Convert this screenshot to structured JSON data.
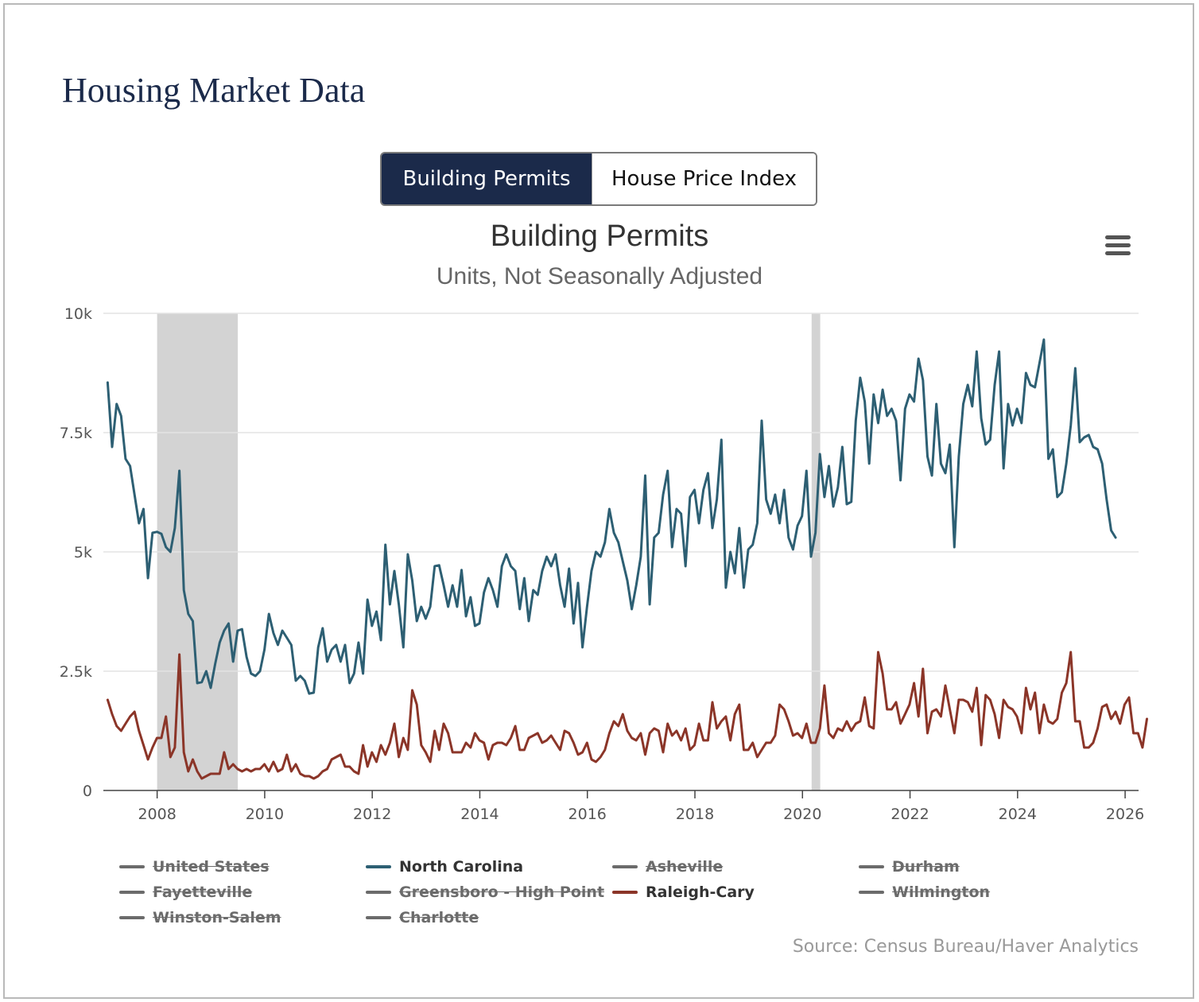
{
  "page": {
    "title": "Housing Market Data"
  },
  "toggle": {
    "active_label": "Building Permits",
    "inactive_label": "House Price Index"
  },
  "source": "Source: Census Bureau/Haver Analytics",
  "chart_data": {
    "type": "line",
    "title": "Building Permits",
    "subtitle": "Units, Not Seasonally Adjusted",
    "ylim": [
      0,
      10000
    ],
    "y_ticks": [
      0,
      2500,
      5000,
      7500,
      10000
    ],
    "y_tick_labels": [
      "0",
      "2.5k",
      "5k",
      "7.5k",
      "10k"
    ],
    "xlim": [
      2007.0,
      2026.25
    ],
    "x_ticks": [
      2008,
      2010,
      2012,
      2014,
      2016,
      2018,
      2020,
      2022,
      2024,
      2026
    ],
    "x_tick_labels": [
      "2008",
      "2010",
      "2012",
      "2014",
      "2016",
      "2018",
      "2020",
      "2022",
      "2024",
      "2026"
    ],
    "x_start": 2007.08,
    "x_step": 0.0833,
    "recession_bands": [
      [
        2008.0,
        2009.5
      ],
      [
        2020.17,
        2020.33
      ]
    ],
    "grid": true,
    "series": [
      {
        "name": "North Carolina",
        "color": "#2d5f73",
        "values": [
          8550,
          7200,
          8100,
          7850,
          6950,
          6800,
          6200,
          5600,
          5900,
          4450,
          5400,
          5420,
          5380,
          5100,
          5000,
          5500,
          6700,
          4200,
          3700,
          3550,
          2250,
          2270,
          2500,
          2150,
          2650,
          3100,
          3350,
          3500,
          2700,
          3350,
          3380,
          2800,
          2450,
          2400,
          2500,
          2950,
          3700,
          3300,
          3050,
          3350,
          3200,
          3050,
          2300,
          2400,
          2300,
          2030,
          2050,
          3000,
          3400,
          2700,
          2950,
          3050,
          2700,
          3050,
          2250,
          2450,
          3100,
          2450,
          4000,
          3450,
          3750,
          3150,
          5150,
          3900,
          4600,
          3900,
          3000,
          4950,
          4400,
          3550,
          3850,
          3600,
          3850,
          4700,
          4720,
          4300,
          3850,
          4300,
          3850,
          4620,
          3650,
          4050,
          3450,
          3500,
          4150,
          4450,
          4200,
          3850,
          4700,
          4950,
          4700,
          4600,
          3800,
          4450,
          3550,
          4200,
          4100,
          4600,
          4900,
          4700,
          4950,
          4300,
          3850,
          4650,
          3500,
          4350,
          3000,
          3850,
          4600,
          5000,
          4900,
          5200,
          5900,
          5400,
          5200,
          4800,
          4400,
          3800,
          4300,
          4900,
          6600,
          3900,
          5300,
          5400,
          6200,
          6700,
          5100,
          5900,
          5800,
          4700,
          6150,
          6300,
          5600,
          6300,
          6650,
          5500,
          6100,
          7350,
          4250,
          5000,
          4550,
          5500,
          4250,
          5050,
          5150,
          5600,
          7750,
          6100,
          5800,
          6200,
          5600,
          6300,
          5300,
          5050,
          5550,
          5750,
          6700,
          4900,
          5400,
          7050,
          6150,
          6800,
          5950,
          6350,
          7200,
          6000,
          6050,
          7750,
          8650,
          8150,
          6850,
          8300,
          7700,
          8400,
          7850,
          8000,
          7750,
          6500,
          8000,
          8300,
          8150,
          9050,
          8600,
          7000,
          6600,
          8100,
          6850,
          6650,
          7250,
          5100,
          7000,
          8100,
          8500,
          8050,
          9200,
          7800,
          7250,
          7350,
          8500,
          9200,
          6750,
          8100,
          7650,
          8000,
          7700,
          8750,
          8500,
          8450,
          8950,
          9450,
          6950,
          7150,
          6150,
          6250,
          6850,
          7650,
          8850,
          7300,
          7400,
          7450,
          7200,
          7150,
          6850,
          6100,
          5450,
          5300
        ]
      },
      {
        "name": "Raleigh-Cary",
        "color": "#8b3528",
        "values": [
          1900,
          1600,
          1350,
          1250,
          1400,
          1550,
          1650,
          1250,
          950,
          650,
          900,
          1100,
          1100,
          1550,
          700,
          900,
          2850,
          800,
          400,
          650,
          400,
          250,
          300,
          350,
          350,
          350,
          800,
          450,
          550,
          450,
          400,
          450,
          400,
          450,
          450,
          550,
          400,
          600,
          400,
          450,
          750,
          400,
          550,
          350,
          300,
          300,
          250,
          300,
          400,
          450,
          650,
          700,
          750,
          500,
          500,
          400,
          350,
          950,
          500,
          800,
          600,
          950,
          750,
          1000,
          1400,
          700,
          1100,
          850,
          2100,
          1800,
          950,
          800,
          600,
          1250,
          850,
          1400,
          1200,
          800,
          800,
          800,
          1000,
          900,
          1200,
          1050,
          1000,
          650,
          950,
          1000,
          1000,
          950,
          1100,
          1350,
          850,
          850,
          1100,
          1150,
          1200,
          1000,
          1050,
          1150,
          1000,
          850,
          1250,
          1200,
          1000,
          750,
          800,
          1000,
          650,
          600,
          700,
          850,
          1200,
          1450,
          1350,
          1600,
          1250,
          1100,
          1050,
          1200,
          750,
          1200,
          1300,
          1250,
          800,
          1400,
          1150,
          1250,
          1050,
          1300,
          850,
          950,
          1400,
          1050,
          1050,
          1850,
          1300,
          1450,
          1550,
          1050,
          1600,
          1800,
          850,
          850,
          1000,
          700,
          850,
          1000,
          1000,
          1150,
          1800,
          1700,
          1450,
          1150,
          1200,
          1100,
          1400,
          1000,
          1000,
          1300,
          2200,
          1200,
          1100,
          1300,
          1250,
          1450,
          1250,
          1400,
          1450,
          1950,
          1350,
          1300,
          2900,
          2450,
          1700,
          1700,
          1850,
          1400,
          1600,
          1800,
          2250,
          1550,
          2550,
          1200,
          1650,
          1700,
          1550,
          2200,
          1700,
          1200,
          1900,
          1900,
          1850,
          1650,
          2150,
          950,
          2000,
          1900,
          1600,
          1100,
          1900,
          1750,
          1700,
          1550,
          1200,
          2150,
          1700,
          2050,
          1200,
          1800,
          1450,
          1400,
          1500,
          2050,
          2250,
          2900,
          1450,
          1450,
          900,
          900,
          1000,
          1300,
          1750,
          1800,
          1500,
          1650,
          1400,
          1800,
          1950,
          1200,
          1200,
          900,
          1500
        ]
      }
    ],
    "legend": [
      {
        "name": "United States",
        "visible": false
      },
      {
        "name": "North Carolina",
        "visible": true,
        "color": "#2d5f73"
      },
      {
        "name": "Asheville",
        "visible": false
      },
      {
        "name": "Durham",
        "visible": false
      },
      {
        "name": "Fayetteville",
        "visible": false
      },
      {
        "name": "Greensboro - High Point",
        "visible": false
      },
      {
        "name": "Raleigh-Cary",
        "visible": true,
        "color": "#8b3528"
      },
      {
        "name": "Wilmington",
        "visible": false
      },
      {
        "name": "Winston-Salem",
        "visible": false
      },
      {
        "name": "Charlotte",
        "visible": false
      }
    ],
    "legend_position": "bottom"
  }
}
